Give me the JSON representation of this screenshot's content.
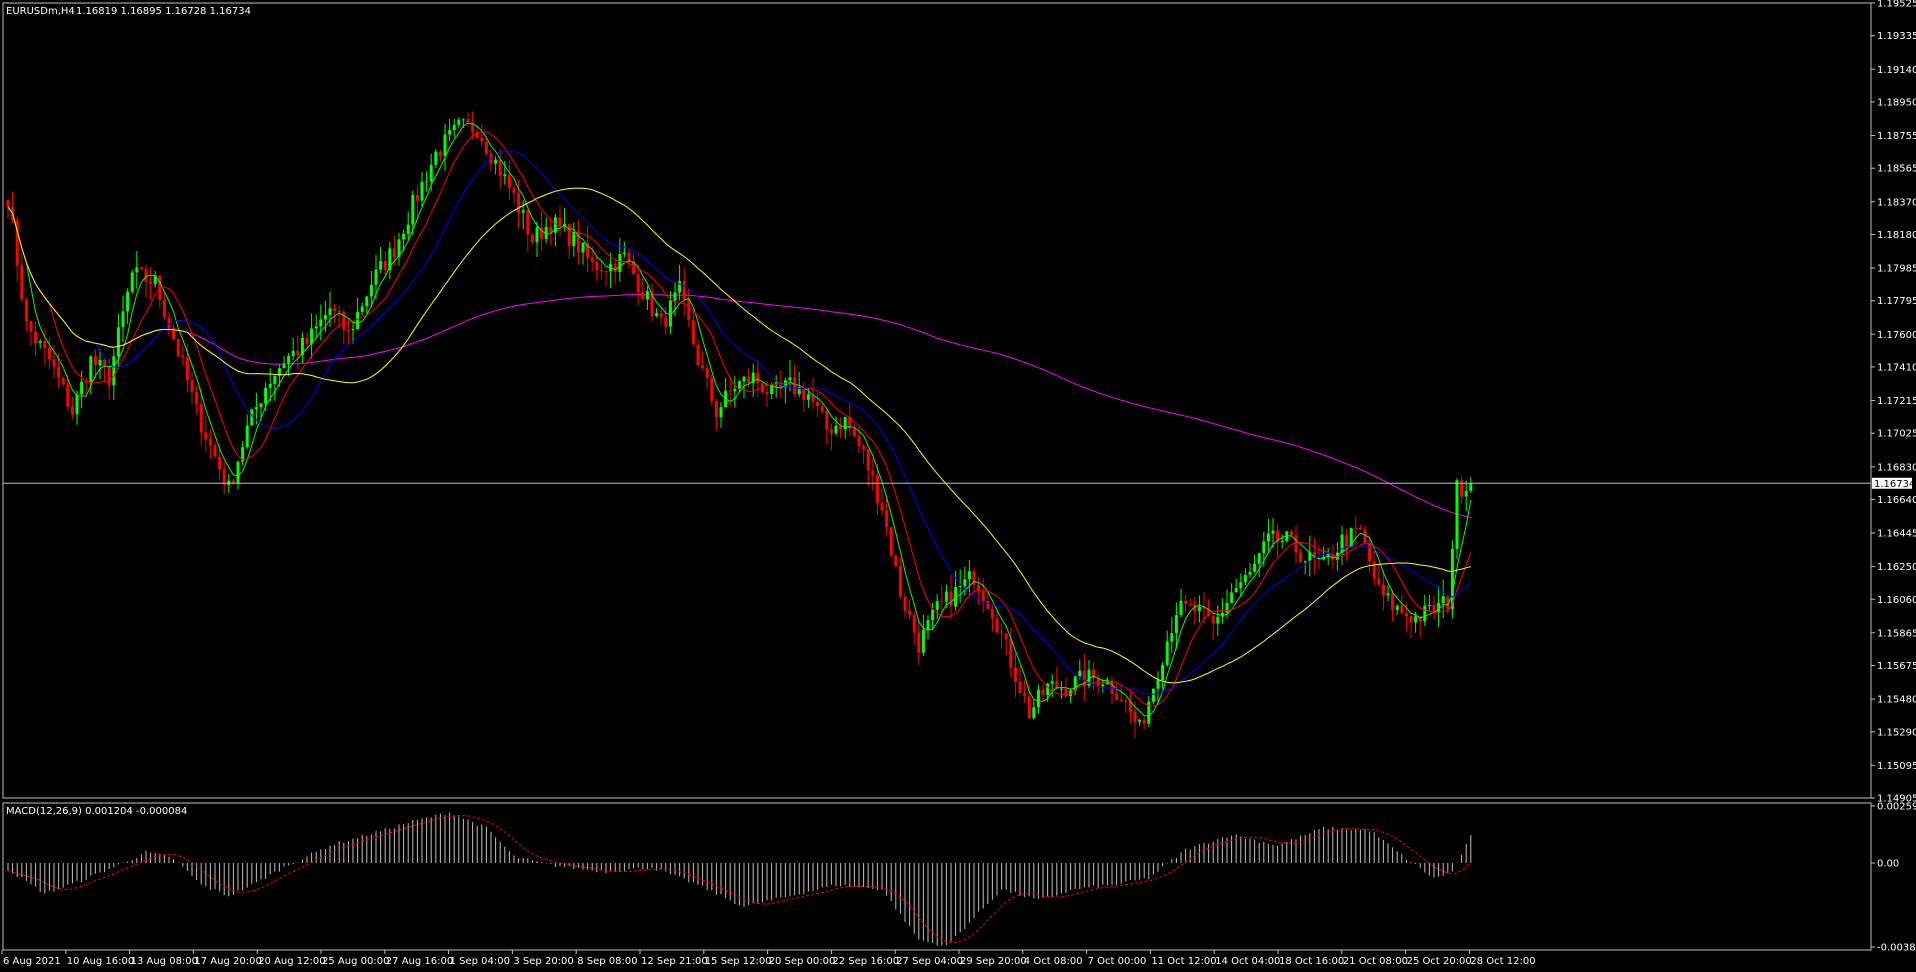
{
  "header": {
    "symbol_label": "EURUSDm,H4",
    "ohlc_text": "1.16819 1.16895 1.16728 1.16734"
  },
  "current_price_label": "1.16734",
  "colors": {
    "background": "#000000",
    "frame": "#c0c0c0",
    "bull_candle": "#00ff00",
    "bear_candle": "#ff0000",
    "ma_fast": "#00ff00",
    "ma_mid": "#ff0000",
    "ma_slow": "#0000ff",
    "ma_50": "#ffff00",
    "ma_200": "#ff00ff",
    "macd_hist": "#c0c0c0",
    "macd_signal": "#ff0000",
    "price_line": "#c0c0c0"
  },
  "chart_data": [
    {
      "type": "candlestick",
      "ylim": [
        1.14905,
        1.19525
      ],
      "y_ticks": [
        "1.19525",
        "1.19335",
        "1.19140",
        "1.18950",
        "1.18755",
        "1.18565",
        "1.18370",
        "1.18180",
        "1.17985",
        "1.17795",
        "1.17600",
        "1.17410",
        "1.17215",
        "1.17025",
        "1.16830",
        "1.16640",
        "1.16445",
        "1.16250",
        "1.16060",
        "1.15865",
        "1.15675",
        "1.15480",
        "1.15290",
        "1.15095",
        "1.14905"
      ],
      "x_ticks": [
        "6 Aug 2021",
        "10 Aug 16:00",
        "13 Aug 08:00",
        "17 Aug 20:00",
        "20 Aug 12:00",
        "25 Aug 00:00",
        "27 Aug 16:00",
        "1 Sep 04:00",
        "3 Sep 20:00",
        "8 Sep 08:00",
        "12 Sep 21:00",
        "15 Sep 12:00",
        "20 Sep 00:00",
        "22 Sep 16:00",
        "27 Sep 04:00",
        "29 Sep 20:00",
        "4 Oct 08:00",
        "7 Oct 00:00",
        "11 Oct 12:00",
        "14 Oct 04:00",
        "18 Oct 16:00",
        "21 Oct 08:00",
        "25 Oct 20:00",
        "28 Oct 12:00"
      ],
      "price_path": [
        [
          0,
          1.184
        ],
        [
          4,
          1.1765
        ],
        [
          9,
          1.1745
        ],
        [
          14,
          1.1715
        ],
        [
          18,
          1.1745
        ],
        [
          22,
          1.1735
        ],
        [
          27,
          1.1795
        ],
        [
          32,
          1.179
        ],
        [
          37,
          1.175
        ],
        [
          41,
          1.1715
        ],
        [
          44,
          1.1695
        ],
        [
          48,
          1.167
        ],
        [
          52,
          1.1705
        ],
        [
          56,
          1.173
        ],
        [
          60,
          1.1745
        ],
        [
          65,
          1.1755
        ],
        [
          70,
          1.1775
        ],
        [
          74,
          1.176
        ],
        [
          79,
          1.179
        ],
        [
          84,
          1.181
        ],
        [
          88,
          1.1835
        ],
        [
          93,
          1.1865
        ],
        [
          98,
          1.188
        ],
        [
          102,
          1.188
        ],
        [
          106,
          1.186
        ],
        [
          110,
          1.184
        ],
        [
          114,
          1.1815
        ],
        [
          118,
          1.1825
        ],
        [
          123,
          1.1815
        ],
        [
          127,
          1.18
        ],
        [
          131,
          1.18
        ],
        [
          134,
          1.1805
        ],
        [
          138,
          1.1785
        ],
        [
          142,
          1.1765
        ],
        [
          146,
          1.1785
        ],
        [
          150,
          1.1745
        ],
        [
          154,
          1.1715
        ],
        [
          158,
          1.173
        ],
        [
          162,
          1.1735
        ],
        [
          166,
          1.1725
        ],
        [
          170,
          1.173
        ],
        [
          174,
          1.1725
        ],
        [
          178,
          1.1705
        ],
        [
          182,
          1.171
        ],
        [
          186,
          1.169
        ],
        [
          190,
          1.166
        ],
        [
          194,
          1.161
        ],
        [
          198,
          1.158
        ],
        [
          202,
          1.16
        ],
        [
          206,
          1.161
        ],
        [
          210,
          1.162
        ],
        [
          214,
          1.16
        ],
        [
          218,
          1.157
        ],
        [
          222,
          1.154
        ],
        [
          226,
          1.1555
        ],
        [
          230,
          1.1555
        ],
        [
          234,
          1.156
        ],
        [
          238,
          1.156
        ],
        [
          242,
          1.155
        ],
        [
          246,
          1.153
        ],
        [
          250,
          1.1565
        ],
        [
          254,
          1.16
        ],
        [
          258,
          1.16
        ],
        [
          262,
          1.159
        ],
        [
          266,
          1.161
        ],
        [
          270,
          1.162
        ],
        [
          274,
          1.164
        ],
        [
          278,
          1.164
        ],
        [
          282,
          1.163
        ],
        [
          286,
          1.1625
        ],
        [
          290,
          1.164
        ],
        [
          294,
          1.1645
        ],
        [
          298,
          1.161
        ],
        [
          302,
          1.16
        ],
        [
          306,
          1.1595
        ],
        [
          310,
          1.16
        ],
        [
          313,
          1.1605
        ],
        [
          315,
          1.167
        ],
        [
          318,
          1.1675
        ]
      ],
      "current_price": 1.16734,
      "moving_averages": [
        {
          "color_key": "ma_fast",
          "period": 5
        },
        {
          "color_key": "ma_mid",
          "period": 10
        },
        {
          "color_key": "ma_slow",
          "period": 20
        },
        {
          "color_key": "ma_50",
          "period": 40
        },
        {
          "color_key": "ma_200",
          "period": 200
        }
      ]
    },
    {
      "type": "bar",
      "title": "MACD(12,26,9) 0.001204 -0.000084",
      "ylim": [
        -0.003829,
        0.002598
      ],
      "y_ticks": [
        "0.002598",
        "0.00",
        "-0.003829"
      ],
      "histogram_anchors": [
        [
          0,
          -0.0003
        ],
        [
          8,
          -0.0014
        ],
        [
          16,
          -0.0008
        ],
        [
          24,
          -0.0001
        ],
        [
          30,
          0.0005
        ],
        [
          36,
          0.0002
        ],
        [
          42,
          -0.001
        ],
        [
          48,
          -0.0015
        ],
        [
          54,
          -0.0009
        ],
        [
          60,
          -0.0002
        ],
        [
          70,
          0.0008
        ],
        [
          80,
          0.0014
        ],
        [
          88,
          0.0019
        ],
        [
          96,
          0.0023
        ],
        [
          104,
          0.0016
        ],
        [
          110,
          0.0003
        ],
        [
          118,
          -0.0001
        ],
        [
          130,
          -0.0004
        ],
        [
          140,
          -0.0002
        ],
        [
          150,
          -0.001
        ],
        [
          160,
          -0.002
        ],
        [
          170,
          -0.0015
        ],
        [
          180,
          -0.001
        ],
        [
          190,
          -0.0012
        ],
        [
          198,
          -0.0035
        ],
        [
          204,
          -0.0038
        ],
        [
          210,
          -0.0025
        ],
        [
          216,
          -0.0012
        ],
        [
          224,
          -0.0017
        ],
        [
          232,
          -0.0012
        ],
        [
          240,
          -0.001
        ],
        [
          248,
          -0.0007
        ],
        [
          256,
          0.0006
        ],
        [
          266,
          0.0013
        ],
        [
          276,
          0.0008
        ],
        [
          286,
          0.0016
        ],
        [
          296,
          0.0015
        ],
        [
          304,
          0.0002
        ],
        [
          310,
          -0.0007
        ],
        [
          314,
          -0.0004
        ],
        [
          318,
          0.0012
        ]
      ],
      "signal_lag": 7
    }
  ]
}
